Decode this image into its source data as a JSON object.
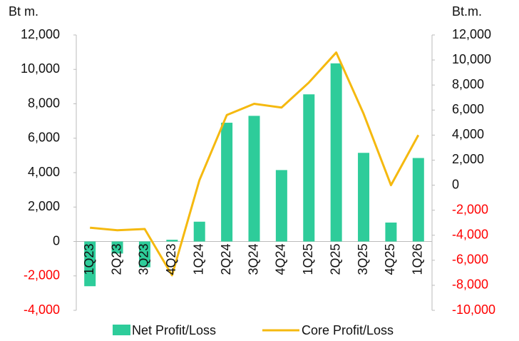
{
  "chart_data": {
    "type": "bar_line",
    "y_label": "Bt m.",
    "y2_label": "Bt.m.",
    "categories": [
      "1Q23",
      "2Q23",
      "3Q23",
      "4Q23",
      "1Q24",
      "2Q24",
      "3Q24",
      "4Q24",
      "1Q25",
      "2Q25",
      "3Q25",
      "4Q25",
      "1Q26"
    ],
    "series": [
      {
        "name": "Net Profit/Loss",
        "type": "bar",
        "color": "#2ecc9a",
        "axis": "y",
        "values": [
          -2600,
          -700,
          -1500,
          100,
          1150,
          6900,
          7300,
          4150,
          8550,
          10350,
          5150,
          1100,
          4850
        ]
      },
      {
        "name": "Core Profit/Loss",
        "type": "line",
        "color": "#f5b90f",
        "axis": "y2",
        "values": [
          -3400,
          -3600,
          -3500,
          -7200,
          400,
          5600,
          6500,
          6200,
          8200,
          10600,
          5700,
          0,
          4000
        ]
      }
    ],
    "ylim": [
      -4000,
      12000
    ],
    "yticks": [
      {
        "value": -4000,
        "label": "-4,000"
      },
      {
        "value": -2000,
        "label": "-2,000"
      },
      0,
      {
        "value": 2000,
        "label": "2,000"
      },
      {
        "value": 4000,
        "label": "4,000"
      },
      {
        "value": 6000,
        "label": "6,000"
      },
      {
        "value": 8000,
        "label": "8,000"
      },
      {
        "value": 10000,
        "label": "10,000"
      },
      {
        "value": 12000,
        "label": "12,000"
      }
    ],
    "y2lim": [
      -10000,
      12000
    ],
    "y2ticks": [
      {
        "value": -10000,
        "label": "-10,000"
      },
      {
        "value": -8000,
        "label": "-8,000"
      },
      {
        "value": -6000,
        "label": "-6,000"
      },
      {
        "value": -4000,
        "label": "-4,000"
      },
      {
        "value": -2000,
        "label": "-2,000"
      },
      0,
      {
        "value": 2000,
        "label": "2,000"
      },
      {
        "value": 4000,
        "label": "4,000"
      },
      {
        "value": 6000,
        "label": "6,000"
      },
      {
        "value": 8000,
        "label": "8,000"
      },
      {
        "value": 10000,
        "label": "10,000"
      },
      {
        "value": 12000,
        "label": "12,000"
      }
    ],
    "tick_color": "#111111",
    "negative_tick_color": "#ff0000",
    "grid": false,
    "legend": "bottom"
  }
}
